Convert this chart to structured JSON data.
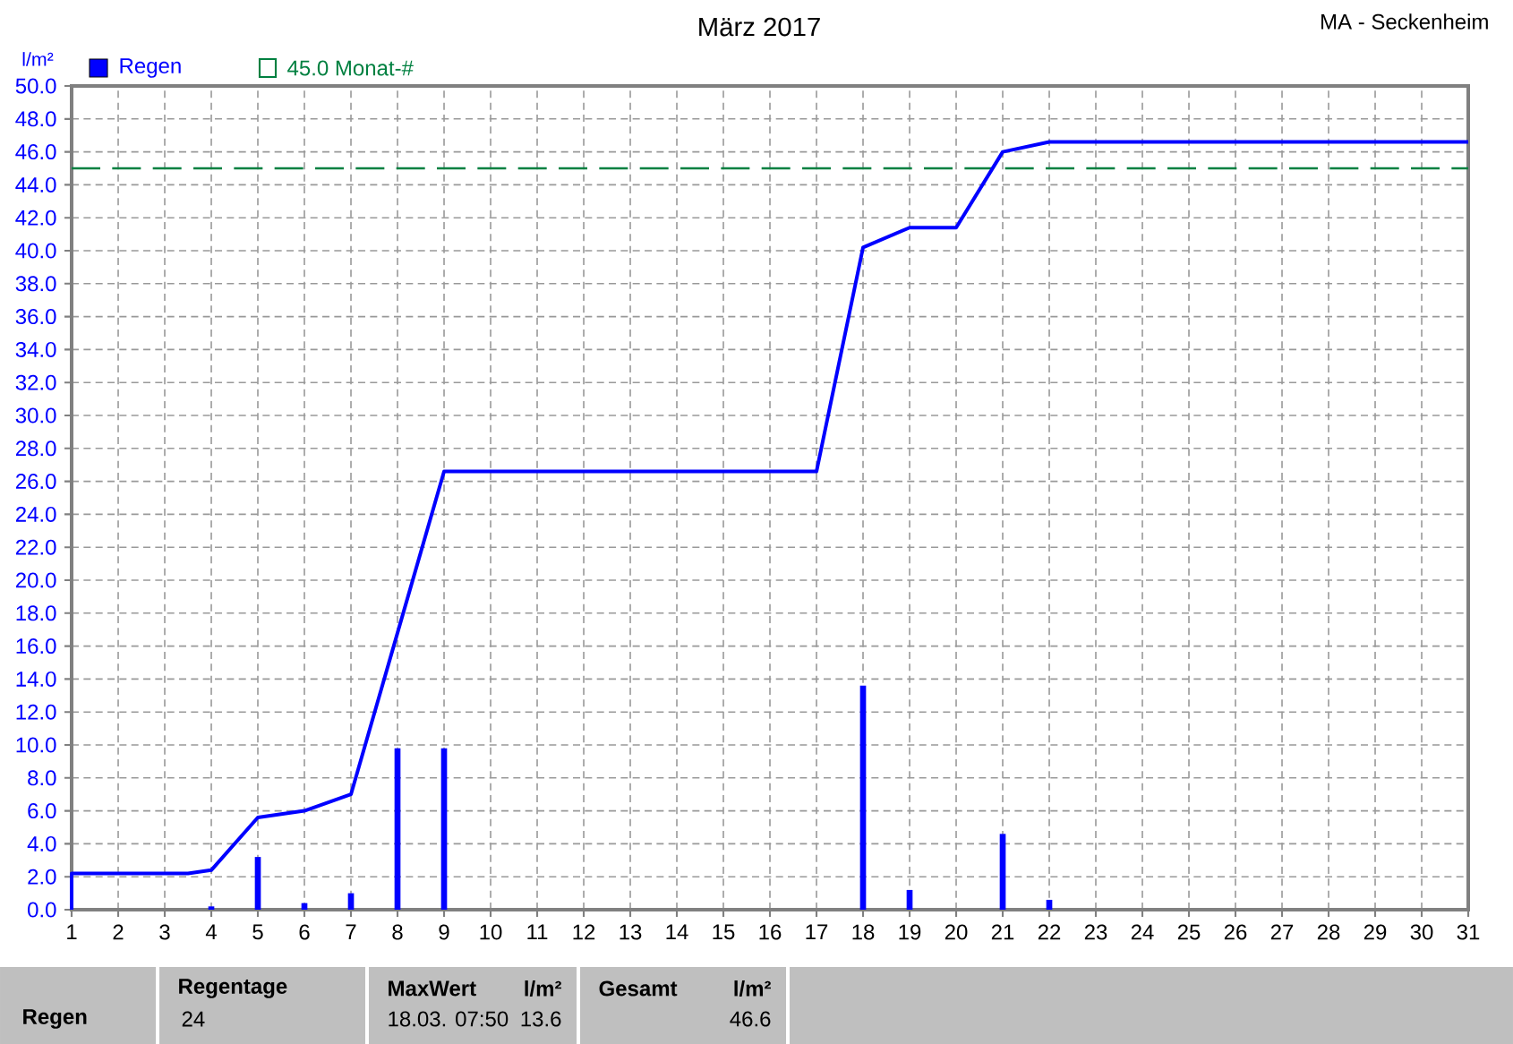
{
  "chart_data": {
    "type": "bar",
    "title": "März 2017",
    "subtitle": "MA - Seckenheim",
    "ylabel": "l/m²",
    "xlim": [
      1,
      31
    ],
    "ylim": [
      0,
      50
    ],
    "xticks": [
      1,
      2,
      3,
      4,
      5,
      6,
      7,
      8,
      9,
      10,
      11,
      12,
      13,
      14,
      15,
      16,
      17,
      18,
      19,
      20,
      21,
      22,
      23,
      24,
      25,
      26,
      27,
      28,
      29,
      30,
      31
    ],
    "yticks": [
      {
        "value": 0,
        "label": "0.0"
      },
      {
        "value": 2,
        "label": "2.0"
      },
      {
        "value": 4,
        "label": "4.0"
      },
      {
        "value": 6,
        "label": "6.0"
      },
      {
        "value": 8,
        "label": "8.0"
      },
      {
        "value": 10,
        "label": "10.0"
      },
      {
        "value": 12,
        "label": "12.0"
      },
      {
        "value": 14,
        "label": "14.0"
      },
      {
        "value": 16,
        "label": "16.0"
      },
      {
        "value": 18,
        "label": "18.0"
      },
      {
        "value": 20,
        "label": "20.0"
      },
      {
        "value": 22,
        "label": "22.0"
      },
      {
        "value": 24,
        "label": "24.0"
      },
      {
        "value": 26,
        "label": "26.0"
      },
      {
        "value": 28,
        "label": "28.0"
      },
      {
        "value": 30,
        "label": "30.0"
      },
      {
        "value": 32,
        "label": "32.0"
      },
      {
        "value": 34,
        "label": "34.0"
      },
      {
        "value": 36,
        "label": "36.0"
      },
      {
        "value": 38,
        "label": "38.0"
      },
      {
        "value": 40,
        "label": "40.0"
      },
      {
        "value": 42,
        "label": "42.0"
      },
      {
        "value": 44,
        "label": "44.0"
      },
      {
        "value": 46,
        "label": "46.0"
      },
      {
        "value": 48,
        "label": "48.0"
      },
      {
        "value": 50,
        "label": "50.0"
      }
    ],
    "grid": true,
    "legend": "top left",
    "series": [
      {
        "name": "Regen",
        "color": "#0000ff",
        "x": [
          4,
          5,
          6,
          7,
          8,
          9,
          18,
          19,
          21,
          22
        ],
        "values": [
          0.2,
          3.2,
          0.4,
          1.0,
          9.8,
          9.8,
          13.6,
          1.2,
          4.6,
          0.6
        ]
      },
      {
        "type": "line",
        "color": "#0000ff",
        "x": [
          1,
          1,
          3.5,
          4,
          5,
          6,
          7,
          8,
          9,
          17,
          18,
          19,
          20,
          21,
          22,
          31
        ],
        "values": [
          0,
          2.2,
          2.2,
          2.4,
          5.6,
          6.0,
          7.0,
          16.8,
          26.6,
          26.6,
          40.2,
          41.4,
          41.4,
          46.0,
          46.6,
          46.6
        ]
      }
    ],
    "ref_lines": [
      {
        "axis": "y",
        "value": 45.0,
        "label": "45.0 Monat-#",
        "color": "#008040",
        "line_style": "dashed"
      }
    ],
    "annotations": [
      "Regen",
      "Regentage",
      "24",
      "MaxWert",
      "l/m²",
      "18.03.  07:50",
      "13.6",
      "Gesamt",
      "l/m²",
      "46.6"
    ]
  }
}
